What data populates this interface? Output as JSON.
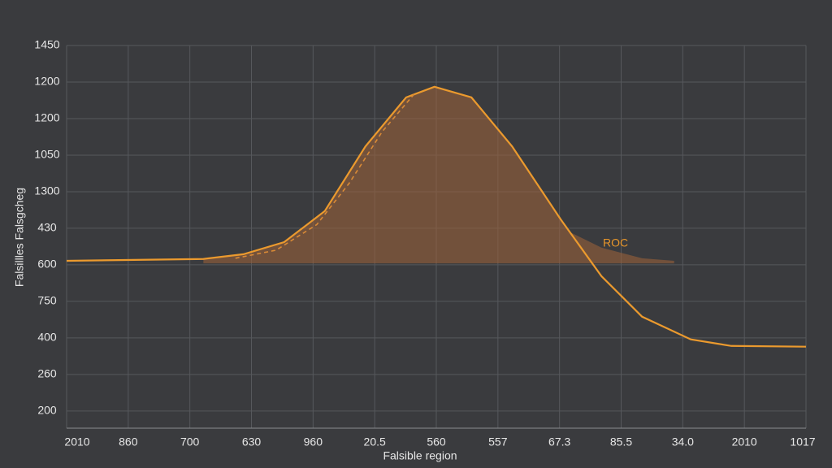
{
  "chart_data": {
    "type": "line",
    "x_label": "Falsible region",
    "y_label": "Falsillles Falsgcheg",
    "annotation": "ROC",
    "xlim": [
      0,
      12
    ],
    "ylim": [
      -0.47,
      10
    ],
    "xticks": [
      {
        "value": 0,
        "label": "2010"
      },
      {
        "value": 1,
        "label": "860"
      },
      {
        "value": 2,
        "label": "700"
      },
      {
        "value": 3,
        "label": "630"
      },
      {
        "value": 4,
        "label": "960"
      },
      {
        "value": 5,
        "label": "20.5"
      },
      {
        "value": 6,
        "label": "560"
      },
      {
        "value": 7,
        "label": "557"
      },
      {
        "value": 8,
        "label": "67.3"
      },
      {
        "value": 9,
        "label": "85.5"
      },
      {
        "value": 10,
        "label": "34.0"
      },
      {
        "value": 11,
        "label": "2010"
      },
      {
        "value": 12,
        "label": "1017"
      }
    ],
    "yticks": [
      {
        "value": 0,
        "label": "200"
      },
      {
        "value": 1,
        "label": "260"
      },
      {
        "value": 2,
        "label": "400"
      },
      {
        "value": 3,
        "label": "750"
      },
      {
        "value": 4,
        "label": "600"
      },
      {
        "value": 5,
        "label": "430"
      },
      {
        "value": 6,
        "label": "1300"
      },
      {
        "value": 7,
        "label": "1050"
      },
      {
        "value": 8,
        "label": "1200"
      },
      {
        "value": 9,
        "label": "1200"
      },
      {
        "value": 10,
        "label": "1450"
      }
    ],
    "grid": true,
    "fill": {
      "color": "#98603a",
      "base": 4.04,
      "x": [
        2.22,
        2.87,
        3.53,
        4.19,
        4.85,
        5.51,
        5.97,
        6.57,
        7.23,
        8.02,
        8.15,
        8.68,
        9.34,
        9.86
      ],
      "values": [
        4.16,
        4.29,
        4.62,
        5.47,
        7.24,
        8.58,
        8.87,
        8.58,
        7.24,
        5.24,
        4.91,
        4.47,
        4.18,
        4.11
      ]
    },
    "series": [
      {
        "color": "#eb9a2e",
        "dashed": false,
        "x": [
          0,
          2.22,
          2.87,
          3.53,
          4.19,
          4.85,
          5.51,
          5.97,
          6.57,
          7.23,
          8.02,
          8.68,
          9.34,
          10.13,
          10.79,
          12
        ],
        "values": [
          4.11,
          4.16,
          4.29,
          4.62,
          5.47,
          7.24,
          8.58,
          8.87,
          8.58,
          7.24,
          5.24,
          3.69,
          2.58,
          1.96,
          1.78,
          1.76
        ]
      },
      {
        "color": "#d98a36",
        "dashed": true,
        "x": [
          2.74,
          3.4,
          4.06,
          4.59,
          5.12,
          5.64
        ],
        "values": [
          4.18,
          4.4,
          5.1,
          6.24,
          7.64,
          8.67
        ]
      }
    ]
  }
}
